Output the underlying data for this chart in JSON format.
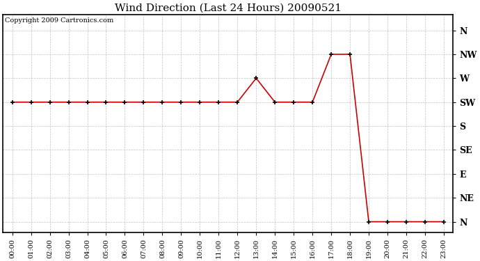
{
  "title": "Wind Direction (Last 24 Hours) 20090521",
  "copyright_text": "Copyright 2009 Cartronics.com",
  "line_color": "#cc0000",
  "bg_color": "#ffffff",
  "plot_bg_color": "#ffffff",
  "grid_color": "#bbbbbb",
  "hours": [
    0,
    1,
    2,
    3,
    4,
    5,
    6,
    7,
    8,
    9,
    10,
    11,
    12,
    13,
    14,
    15,
    16,
    17,
    18,
    19,
    20,
    21,
    22,
    23
  ],
  "values": [
    225,
    225,
    225,
    225,
    225,
    225,
    225,
    225,
    225,
    225,
    225,
    225,
    225,
    270,
    225,
    225,
    225,
    315,
    315,
    0,
    0,
    0,
    0,
    0
  ],
  "yticks_values": [
    360,
    315,
    270,
    225,
    180,
    135,
    90,
    45,
    0
  ],
  "yticks_labels": [
    "N",
    "NW",
    "W",
    "SW",
    "S",
    "SE",
    "E",
    "NE",
    "N"
  ],
  "ylim": [
    -20,
    390
  ],
  "xtick_labels": [
    "00:00",
    "01:00",
    "02:00",
    "03:00",
    "04:00",
    "05:00",
    "06:00",
    "07:00",
    "08:00",
    "09:00",
    "10:00",
    "11:00",
    "12:00",
    "13:00",
    "14:00",
    "15:00",
    "16:00",
    "17:00",
    "18:00",
    "19:00",
    "20:00",
    "21:00",
    "22:00",
    "23:00"
  ]
}
